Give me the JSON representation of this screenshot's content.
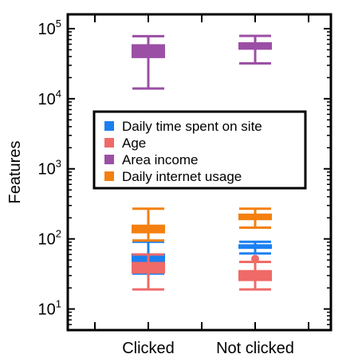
{
  "chart_data": {
    "type": "box",
    "ylabel": "Features",
    "yscale": "log",
    "ylim": [
      5,
      160000
    ],
    "categories": [
      "Clicked",
      "Not clicked"
    ],
    "yticks": [
      {
        "base": "10",
        "exp": "1",
        "value": 10
      },
      {
        "base": "10",
        "exp": "2",
        "value": 100
      },
      {
        "base": "10",
        "exp": "3",
        "value": 1000
      },
      {
        "base": "10",
        "exp": "4",
        "value": 10000
      },
      {
        "base": "10",
        "exp": "5",
        "value": 100000
      }
    ],
    "legend": {
      "position": "center"
    },
    "series": [
      {
        "name": "Daily time spent on site",
        "color": "#1a80f0",
        "boxes": [
          {
            "category": "Clicked",
            "whisker_low": 32,
            "q1": 45,
            "median": 52,
            "q3": 62,
            "whisker_high": 91
          },
          {
            "category": "Not clicked",
            "whisker_low": 62,
            "q1": 72,
            "median": 78,
            "q3": 84,
            "whisker_high": 91
          }
        ]
      },
      {
        "name": "Age",
        "color": "#ef6a68",
        "boxes": [
          {
            "category": "Clicked",
            "whisker_low": 19,
            "q1": 32,
            "median": 40,
            "q3": 47,
            "whisker_high": 60
          },
          {
            "category": "Not clicked",
            "whisker_low": 19,
            "q1": 25,
            "median": 30,
            "q3": 36,
            "whisker_high": 47,
            "outliers": [
              52
            ]
          }
        ]
      },
      {
        "name": "Area income",
        "color": "#9b4fa5",
        "boxes": [
          {
            "category": "Clicked",
            "whisker_low": 14000,
            "q1": 38000,
            "median": 50000,
            "q3": 60000,
            "whisker_high": 78000
          },
          {
            "category": "Not clicked",
            "whisker_low": 32000,
            "q1": 50000,
            "median": 57000,
            "q3": 64000,
            "whisker_high": 79000
          }
        ]
      },
      {
        "name": "Daily internet usage",
        "color": "#f38010",
        "boxes": [
          {
            "category": "Clicked",
            "whisker_low": 95,
            "q1": 120,
            "median": 138,
            "q3": 160,
            "whisker_high": 270
          },
          {
            "category": "Not clicked",
            "whisker_low": 145,
            "q1": 185,
            "median": 205,
            "q3": 230,
            "whisker_high": 270
          }
        ]
      }
    ]
  }
}
